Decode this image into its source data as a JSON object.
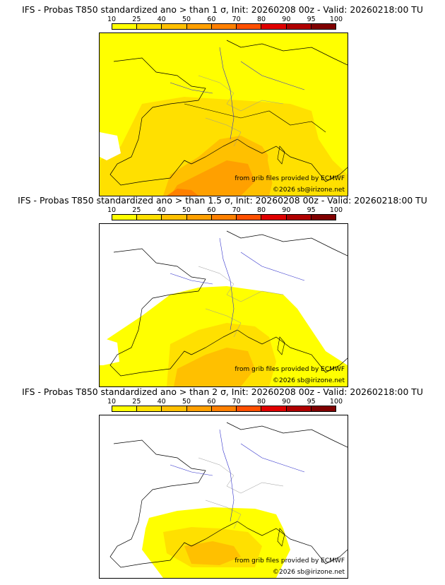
{
  "panels": [
    {
      "title": "IFS - Probas T850  standardized ano > than 1 σ, Init: 20260208 00z - Valid: 20260218:00 TU",
      "source_text": "from grib files provided by ECMWF",
      "copyright": "©2026 sb@irizone.net"
    },
    {
      "title": "IFS - Probas T850  standardized ano > than 1.5 σ, Init: 20260208 00z - Valid: 20260218:00 TU",
      "source_text": "from grib files provided by ECMWF",
      "copyright": "©2026 sb@irizone.net"
    },
    {
      "title": "IFS - Probas T850  standardized ano > than 2 σ, Init: 20260208 00z - Valid: 20260218:00 TU",
      "source_text": "from grib files provided by ECMWF",
      "copyright": "©2026 sb@irizone.net"
    }
  ],
  "legend": {
    "ticks": [
      "10",
      "25",
      "40",
      "50",
      "60",
      "70",
      "80",
      "90",
      "95",
      "100"
    ],
    "colors": [
      "#ffff00",
      "#ffe000",
      "#ffc000",
      "#ffa000",
      "#ff8000",
      "#ff5000",
      "#e00000",
      "#b00000",
      "#800000"
    ]
  },
  "map_colors": {
    "coast": "#000000",
    "rivers": "#3333cc",
    "borders": "#999999"
  }
}
